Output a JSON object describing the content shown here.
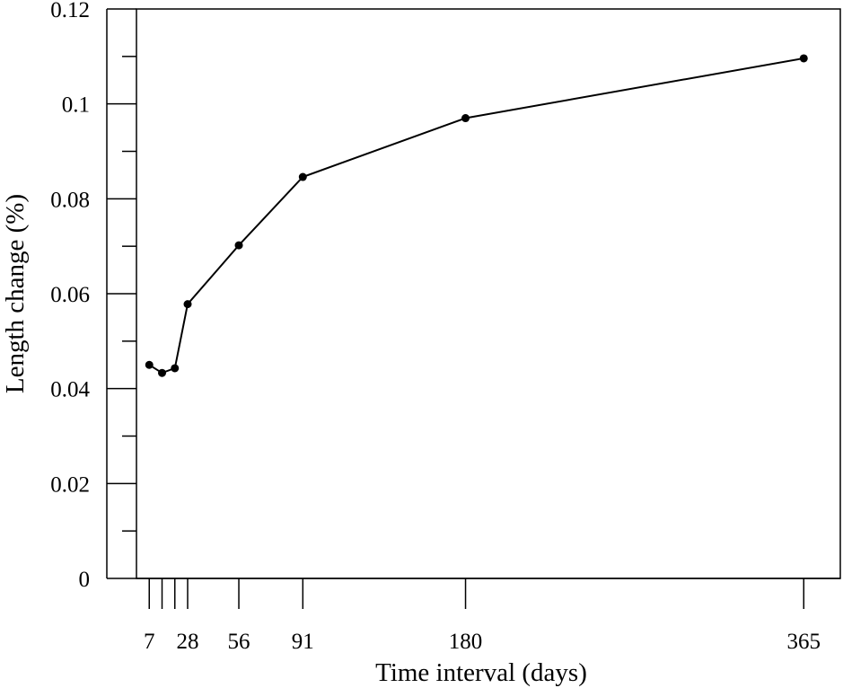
{
  "chart_data": {
    "type": "line",
    "title": "",
    "xlabel": "Time interval (days)",
    "ylabel": "Length change (%)",
    "x": [
      7,
      14,
      21,
      28,
      56,
      91,
      180,
      365
    ],
    "series": [
      {
        "values": [
          0.045,
          0.0433,
          0.0443,
          0.0578,
          0.0702,
          0.0846,
          0.097,
          0.1096
        ]
      }
    ],
    "xlim": [
      0,
      385
    ],
    "ylim": [
      0,
      0.12
    ],
    "yticks_major": [
      0,
      0.02,
      0.04,
      0.06,
      0.08,
      0.1,
      0.12
    ],
    "yticks_major_labels": [
      "0",
      "0.02",
      "0.04",
      "0.06",
      "0.08",
      "0.1",
      "0.12"
    ],
    "yticks_minor": [
      0.01,
      0.03,
      0.05,
      0.07,
      0.09,
      0.11
    ],
    "xticks": [
      7,
      14,
      21,
      28,
      56,
      91,
      180,
      365
    ],
    "xtick_labels": [
      "7",
      "",
      "",
      "28",
      "56",
      "91",
      "180",
      "365"
    ],
    "grid": false,
    "legend": "none",
    "line_color": "#000000"
  }
}
